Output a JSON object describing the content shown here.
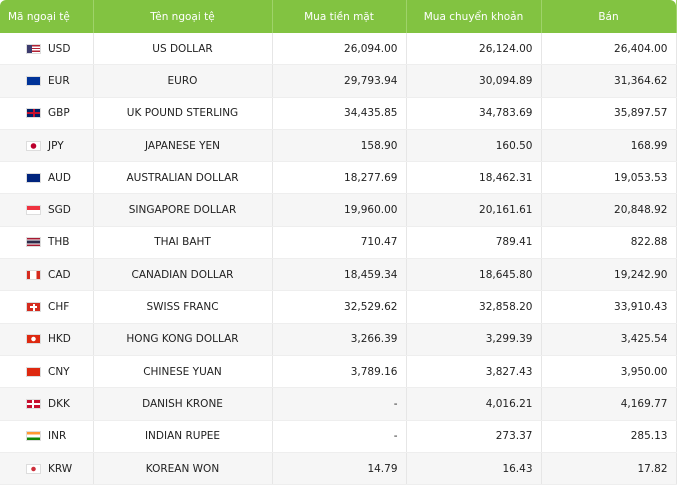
{
  "table": {
    "header": [
      "Mã ngoại tệ",
      "Tên ngoại tệ",
      "Mua tiền mặt",
      "Mua chuyển khoản",
      "Bán"
    ],
    "rows": [
      [
        "USD",
        "US DOLLAR",
        "26,094.00",
        "26,124.00",
        "26,404.00"
      ],
      [
        "EUR",
        "EURO",
        "29,793.94",
        "30,094.89",
        "31,364.62"
      ],
      [
        "GBP",
        "UK POUND STERLING",
        "34,435.85",
        "34,783.69",
        "35,897.57"
      ],
      [
        "JPY",
        "JAPANESE YEN",
        "158.90",
        "160.50",
        "168.99"
      ],
      [
        "AUD",
        "AUSTRALIAN DOLLAR",
        "18,277.69",
        "18,462.31",
        "19,053.53"
      ],
      [
        "SGD",
        "SINGAPORE DOLLAR",
        "19,960.00",
        "20,161.61",
        "20,848.92"
      ],
      [
        "THB",
        "THAI BAHT",
        "710.47",
        "789.41",
        "822.88"
      ],
      [
        "CAD",
        "CANADIAN DOLLAR",
        "18,459.34",
        "18,645.80",
        "19,242.90"
      ],
      [
        "CHF",
        "SWISS FRANC",
        "32,529.62",
        "32,858.20",
        "33,910.43"
      ],
      [
        "HKD",
        "HONG KONG DOLLAR",
        "3,266.39",
        "3,299.39",
        "3,425.54"
      ],
      [
        "CNY",
        "CHINESE YUAN",
        "3,789.16",
        "3,827.43",
        "3,950.00"
      ],
      [
        "DKK",
        "DANISH KRONE",
        "-",
        "4,016.21",
        "4,169.77"
      ],
      [
        "INR",
        "INDIAN RUPEE",
        "-",
        "273.37",
        "285.13"
      ],
      [
        "KRW",
        "KOREAN WON",
        "14.79",
        "16.43",
        "17.82"
      ]
    ]
  }
}
